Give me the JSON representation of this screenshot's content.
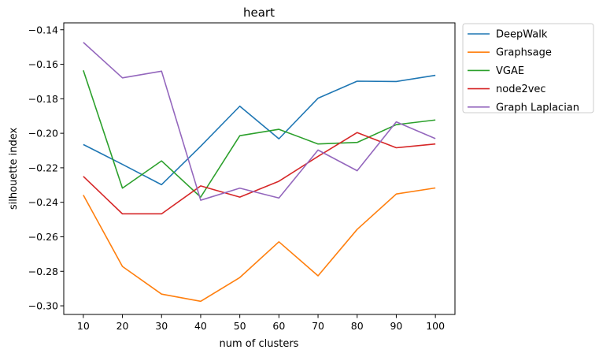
{
  "chart_data": {
    "type": "line",
    "title": "heart",
    "xlabel": "num of clusters",
    "ylabel": "silhouette index",
    "x": [
      10,
      20,
      30,
      40,
      50,
      60,
      70,
      80,
      90,
      100
    ],
    "xlim": [
      5,
      105
    ],
    "ylim": [
      -0.305,
      -0.136
    ],
    "yticks": [
      -0.14,
      -0.16,
      -0.18,
      -0.2,
      -0.22,
      -0.24,
      -0.26,
      -0.28,
      -0.3
    ],
    "ytick_labels": [
      "−0.14",
      "−0.16",
      "−0.18",
      "−0.20",
      "−0.22",
      "−0.24",
      "−0.26",
      "−0.28",
      "−0.30"
    ],
    "grid": false,
    "legend_placement": "outside-top-right",
    "series": [
      {
        "name": "DeepWalk",
        "color": "#1f77b4",
        "values": [
          -0.2065,
          -0.218,
          -0.2298,
          -0.2075,
          -0.1843,
          -0.2032,
          -0.1797,
          -0.1698,
          -0.17,
          -0.1664
        ]
      },
      {
        "name": "Graphsage",
        "color": "#ff7f0e",
        "values": [
          -0.2358,
          -0.2772,
          -0.2932,
          -0.2974,
          -0.2836,
          -0.2629,
          -0.2826,
          -0.2557,
          -0.2352,
          -0.2317
        ]
      },
      {
        "name": "VGAE",
        "color": "#2ca02c",
        "values": [
          -0.1635,
          -0.2318,
          -0.216,
          -0.237,
          -0.2014,
          -0.1977,
          -0.2062,
          -0.2053,
          -0.195,
          -0.1923
        ]
      },
      {
        "name": "node2vec",
        "color": "#d62728",
        "values": [
          -0.225,
          -0.2467,
          -0.2467,
          -0.2305,
          -0.237,
          -0.2278,
          -0.2134,
          -0.1996,
          -0.2084,
          -0.2062
        ]
      },
      {
        "name": "Graph Laplacian",
        "color": "#9467bd",
        "values": [
          -0.1473,
          -0.1679,
          -0.164,
          -0.2388,
          -0.2318,
          -0.2375,
          -0.2097,
          -0.2217,
          -0.1934,
          -0.2031
        ]
      }
    ]
  }
}
